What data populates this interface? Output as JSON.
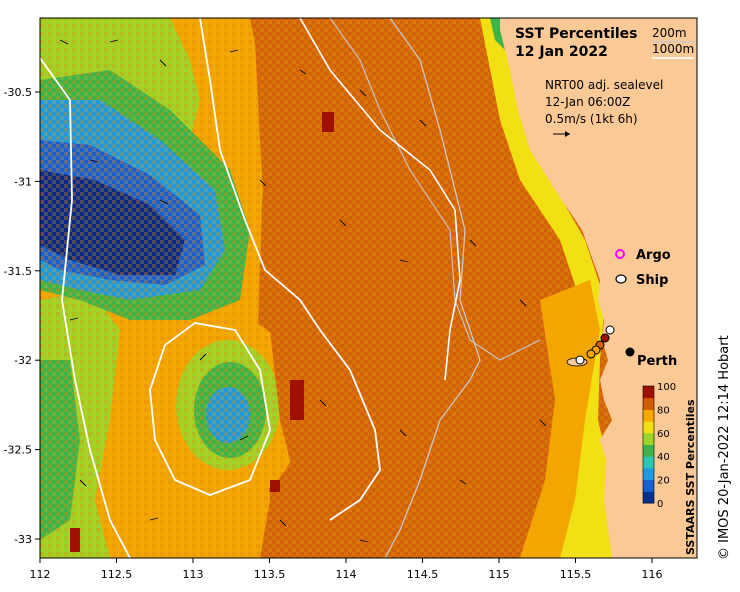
{
  "map": {
    "title": "SST Percentiles",
    "date": "12 Jan 2022",
    "depth_contours": [
      "200m",
      "1000m"
    ],
    "current_source": "NRT00 adj. sealevel",
    "current_time": "12-Jan 06:00Z",
    "vector_scale": "0.5m/s (1kt 6h)",
    "markers": [
      {
        "label": "Argo",
        "color": "#ff00ff"
      },
      {
        "label": "Ship",
        "color": "#000000"
      },
      {
        "label": "Perth",
        "color": "#000000"
      }
    ],
    "x_axis": {
      "ticks": [
        "112",
        "112.5",
        "113",
        "113.5",
        "114",
        "114.5",
        "115",
        "115.5",
        "116"
      ]
    },
    "y_axis": {
      "ticks": [
        "-30.5",
        "-31",
        "-31.5",
        "-32",
        "-32.5",
        "-33"
      ]
    },
    "colorbar": {
      "title": "SSTAARS SST Percentiles",
      "ticks": [
        "0",
        "20",
        "40",
        "60",
        "80",
        "100"
      ],
      "colors": [
        "#08308e",
        "#1a5fd1",
        "#1e9be0",
        "#28c8b2",
        "#3cb44b",
        "#9dd42a",
        "#f0e014",
        "#f6a800",
        "#d25a00",
        "#a01000"
      ]
    },
    "colors": {
      "land": "#fbc995",
      "warm_dark": "#d2620a",
      "warm": "#f3a500",
      "yellow": "#f0e014",
      "green": "#3cb44b",
      "blue": "#1e6ed6",
      "navy": "#0a2a8a",
      "maroon": "#a01000"
    },
    "copyright": "© IMOS 20-Jan-2022 12:14 Hobart"
  }
}
